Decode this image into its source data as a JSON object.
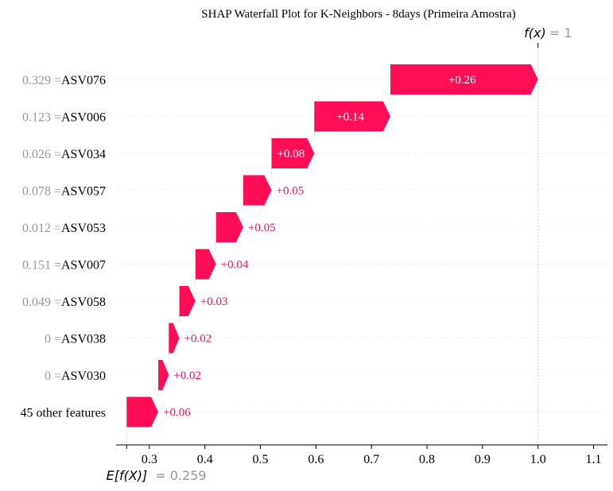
{
  "chart_data": {
    "type": "waterfall",
    "title": "SHAP Waterfall Plot for K-Neighbors - 8days (Primeira Amostra)",
    "base_value": 0.259,
    "base_label": "E[f(X)]",
    "base_value_text": "= 0.259",
    "output_value": 1,
    "output_label": "f(x)",
    "output_value_text": "= 1",
    "features": [
      {
        "name": "ASV076",
        "value_text": "0.329 =",
        "contribution": 0.26,
        "label": "+0.26"
      },
      {
        "name": "ASV006",
        "value_text": "0.123 =",
        "contribution": 0.14,
        "label": "+0.14"
      },
      {
        "name": "ASV034",
        "value_text": "0.026 =",
        "contribution": 0.08,
        "label": "+0.08"
      },
      {
        "name": "ASV057",
        "value_text": "0.078 =",
        "contribution": 0.05,
        "label": "+0.05"
      },
      {
        "name": "ASV053",
        "value_text": "0.012 =",
        "contribution": 0.05,
        "label": "+0.05"
      },
      {
        "name": "ASV007",
        "value_text": "0.151 =",
        "contribution": 0.04,
        "label": "+0.04"
      },
      {
        "name": "ASV058",
        "value_text": "0.049 =",
        "contribution": 0.03,
        "label": "+0.03"
      },
      {
        "name": "ASV038",
        "value_text": "0 =",
        "contribution": 0.02,
        "label": "+0.02"
      },
      {
        "name": "ASV030",
        "value_text": "0 =",
        "contribution": 0.02,
        "label": "+0.02"
      },
      {
        "name": "45 other features",
        "value_text": "",
        "contribution": 0.06,
        "label": "+0.06"
      }
    ],
    "segments": [
      {
        "start": 0.734,
        "end": 1.0
      },
      {
        "start": 0.597,
        "end": 0.734
      },
      {
        "start": 0.52,
        "end": 0.597
      },
      {
        "start": 0.469,
        "end": 0.52
      },
      {
        "start": 0.42,
        "end": 0.469
      },
      {
        "start": 0.383,
        "end": 0.42
      },
      {
        "start": 0.354,
        "end": 0.383
      },
      {
        "start": 0.335,
        "end": 0.354
      },
      {
        "start": 0.316,
        "end": 0.335
      },
      {
        "start": 0.259,
        "end": 0.316
      }
    ],
    "x_ticks": [
      0.3,
      0.4,
      0.5,
      0.6,
      0.7,
      0.8,
      0.9,
      1.0,
      1.1
    ],
    "x_tick_labels": [
      "0.3",
      "0.4",
      "0.5",
      "0.6",
      "0.7",
      "0.8",
      "0.9",
      "1.0",
      "1.1"
    ],
    "xlim": [
      0.24,
      1.125
    ],
    "xlabel": "",
    "ylabel": "",
    "grid": "horizontal dotted",
    "colors": {
      "positive": "#ff0d57",
      "muted_text": "#999999",
      "axis": "#000000",
      "grid": "#e8e8e8",
      "guide": "#c8c8c8"
    }
  }
}
